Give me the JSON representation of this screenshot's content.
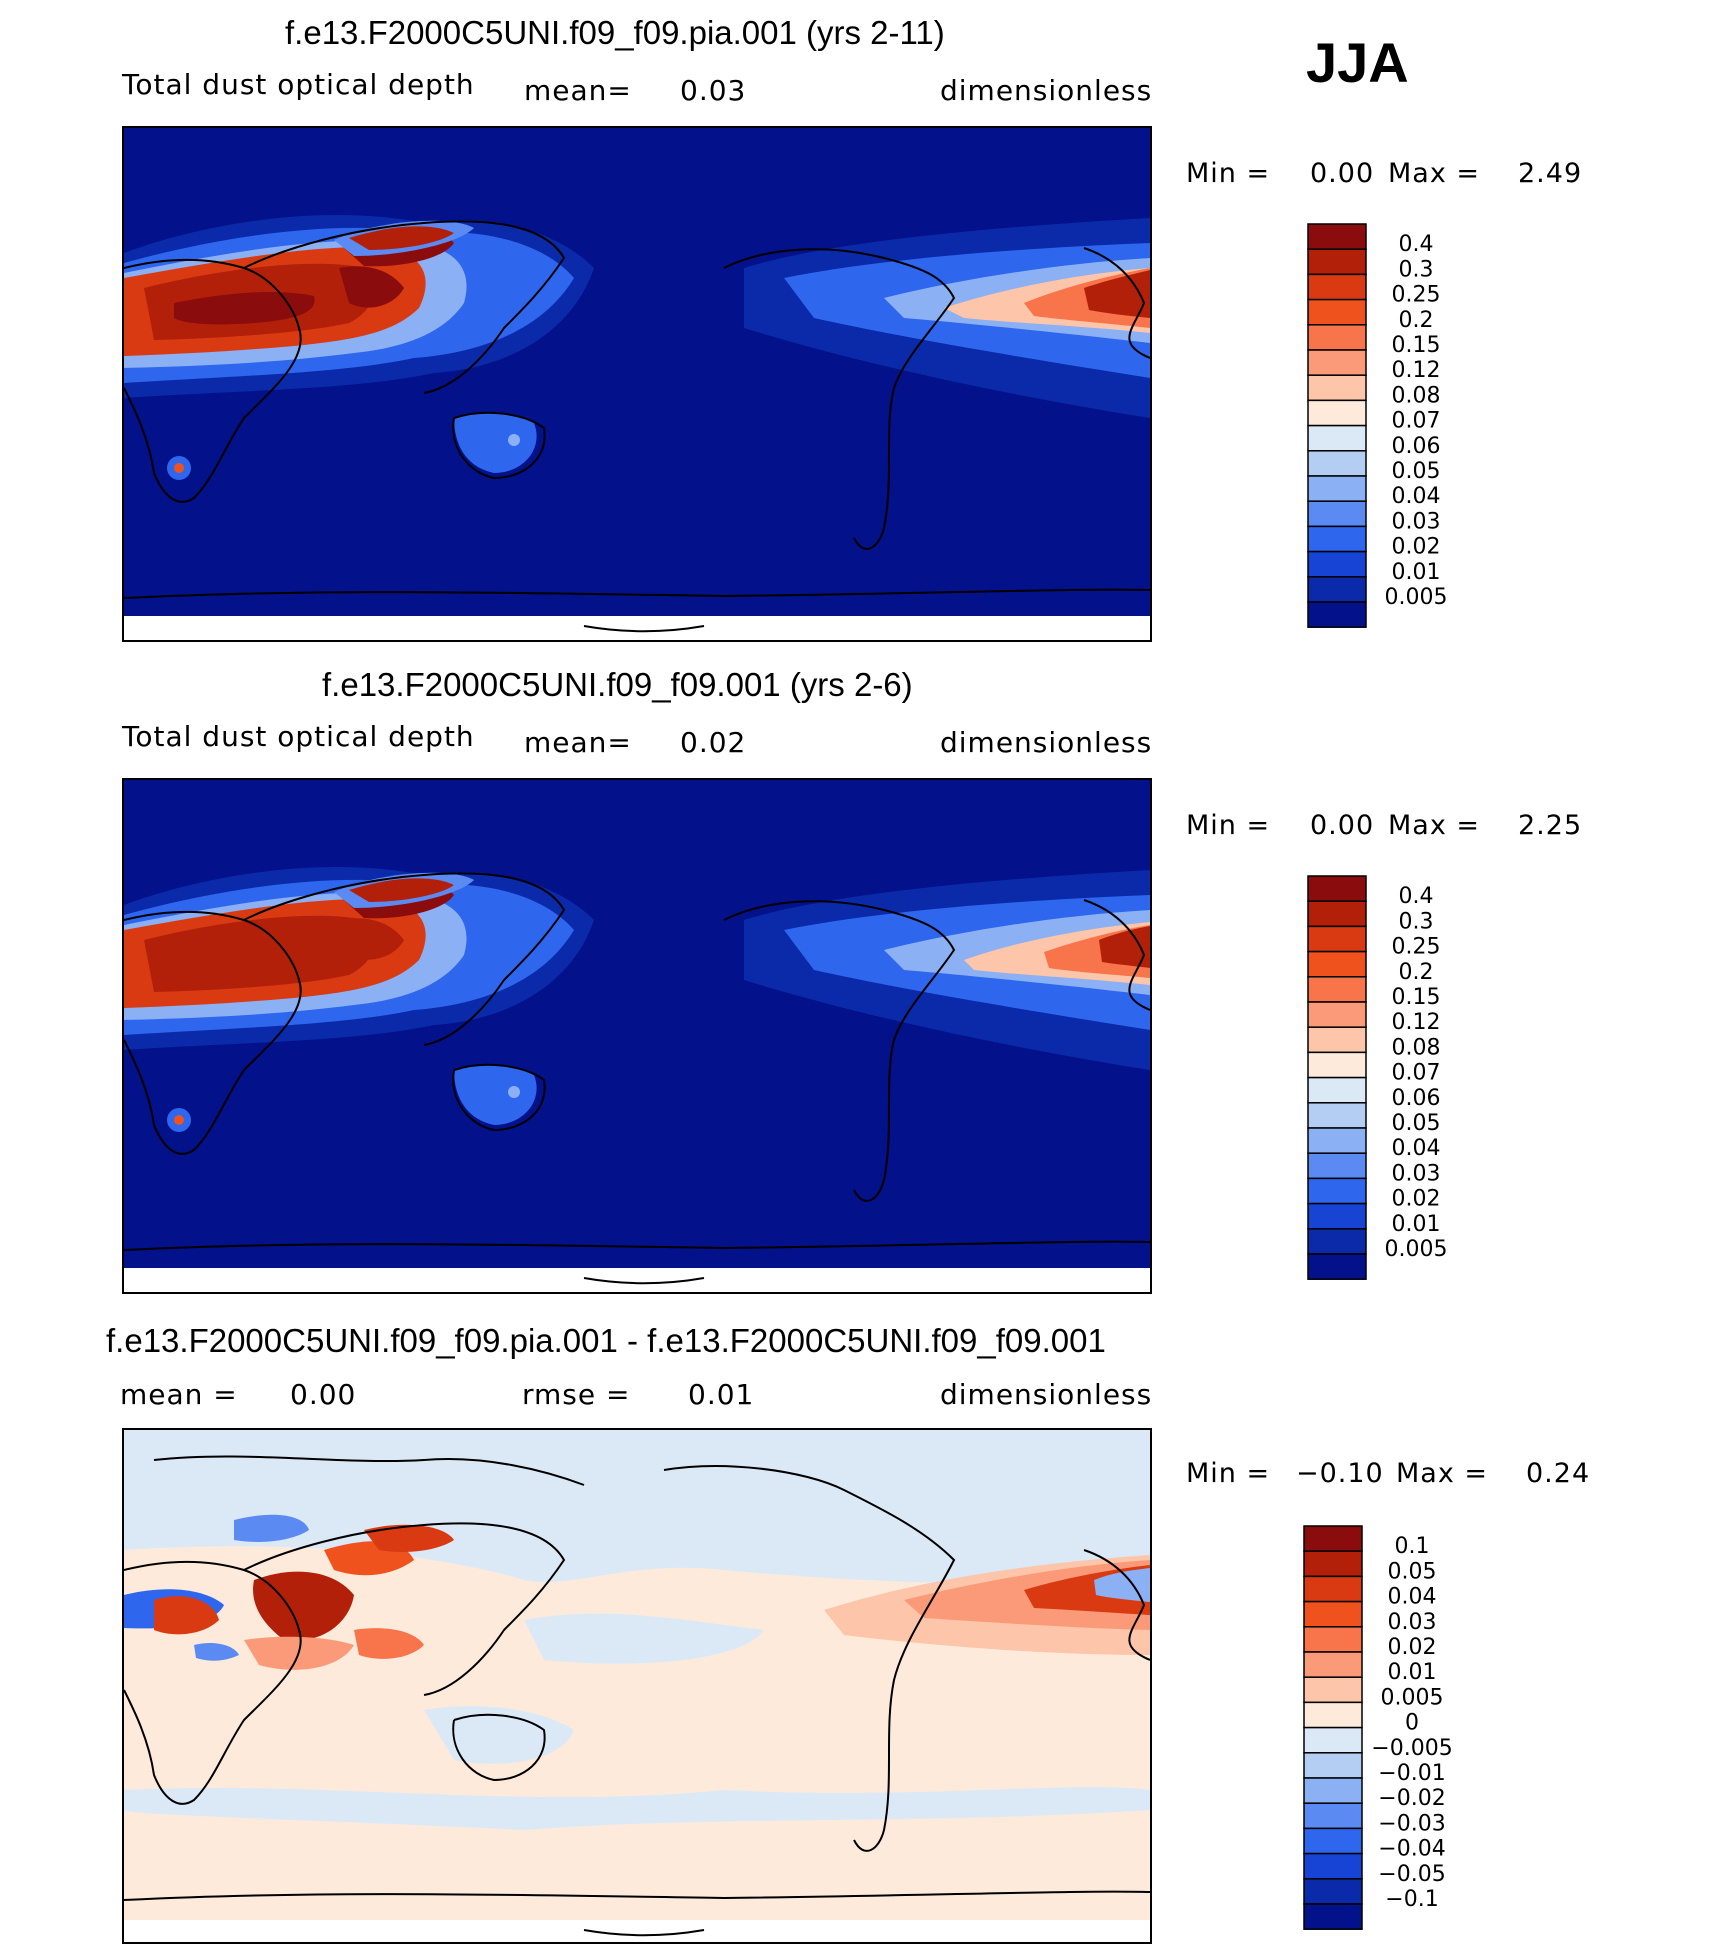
{
  "season": "JJA",
  "panels": [
    {
      "title": "f.e13.F2000C5UNI.f09_f09.pia.001 (yrs 2-11)",
      "variable": "Total dust optical depth",
      "stat1_label": "mean=",
      "stat1_value": "0.03",
      "stat2_label": "",
      "stat2_value": "",
      "units": "dimensionless",
      "min_label": "Min =",
      "min_value": "0.00",
      "max_label": "Max =",
      "max_value": "2.49",
      "type": "abs"
    },
    {
      "title": "f.e13.F2000C5UNI.f09_f09.001 (yrs 2-6)",
      "variable": "Total dust optical depth",
      "stat1_label": "mean=",
      "stat1_value": "0.02",
      "stat2_label": "",
      "stat2_value": "",
      "units": "dimensionless",
      "min_label": "Min =",
      "min_value": "0.00",
      "max_label": "Max =",
      "max_value": "2.25",
      "type": "abs"
    },
    {
      "title": "f.e13.F2000C5UNI.f09_f09.pia.001 - f.e13.F2000C5UNI.f09_f09.001",
      "variable": "",
      "stat1_label": "mean =",
      "stat1_value": "0.00",
      "stat2_label": "rmse =",
      "stat2_value": "0.01",
      "units": "dimensionless",
      "min_label": "Min =",
      "min_value": "−0.10",
      "max_label": "Max =",
      "max_value": "0.24",
      "type": "diff"
    }
  ],
  "chart_data": [
    {
      "type": "heatmap",
      "title": "f.e13.F2000C5UNI.f09_f09.pia.001 (yrs 2-11)",
      "variable": "Total dust optical depth",
      "mean": 0.03,
      "min": 0.0,
      "max": 2.49,
      "units": "dimensionless",
      "colorbar_levels": [
        "0.4",
        "0.3",
        "0.25",
        "0.2",
        "0.15",
        "0.12",
        "0.08",
        "0.07",
        "0.06",
        "0.05",
        "0.04",
        "0.03",
        "0.02",
        "0.01",
        "0.005"
      ],
      "colorbar_colors": [
        "#8b0c0c",
        "#b3200a",
        "#d93a12",
        "#f0521d",
        "#f8744a",
        "#fb9a78",
        "#fdc5aa",
        "#feeadb",
        "#dbe9f7",
        "#b4cdf3",
        "#8bb0f4",
        "#5b8bf2",
        "#2e66ee",
        "#1744d4",
        "#0a2aaa",
        "#03118a"
      ]
    },
    {
      "type": "heatmap",
      "title": "f.e13.F2000C5UNI.f09_f09.001 (yrs 2-6)",
      "variable": "Total dust optical depth",
      "mean": 0.02,
      "min": 0.0,
      "max": 2.25,
      "units": "dimensionless",
      "colorbar_levels": [
        "0.4",
        "0.3",
        "0.25",
        "0.2",
        "0.15",
        "0.12",
        "0.08",
        "0.07",
        "0.06",
        "0.05",
        "0.04",
        "0.03",
        "0.02",
        "0.01",
        "0.005"
      ],
      "colorbar_colors": [
        "#8b0c0c",
        "#b3200a",
        "#d93a12",
        "#f0521d",
        "#f8744a",
        "#fb9a78",
        "#fdc5aa",
        "#feeadb",
        "#dbe9f7",
        "#b4cdf3",
        "#8bb0f4",
        "#5b8bf2",
        "#2e66ee",
        "#1744d4",
        "#0a2aaa",
        "#03118a"
      ]
    },
    {
      "type": "heatmap",
      "title": "f.e13.F2000C5UNI.f09_f09.pia.001 - f.e13.F2000C5UNI.f09_f09.001",
      "mean": 0.0,
      "rmse": 0.01,
      "min": -0.1,
      "max": 0.24,
      "units": "dimensionless",
      "colorbar_levels": [
        "0.1",
        "0.05",
        "0.04",
        "0.03",
        "0.02",
        "0.01",
        "0.005",
        "0",
        "−0.005",
        "−0.01",
        "−0.02",
        "−0.03",
        "−0.04",
        "−0.05",
        "−0.1"
      ],
      "colorbar_colors": [
        "#8b0c0c",
        "#b3200a",
        "#d93a12",
        "#f0521d",
        "#f8744a",
        "#fb9a78",
        "#fdc5aa",
        "#feeadb",
        "#dbe9f7",
        "#b4cdf3",
        "#8bb0f4",
        "#5b8bf2",
        "#2e66ee",
        "#1744d4",
        "#0a2aaa",
        "#03118a"
      ]
    }
  ]
}
